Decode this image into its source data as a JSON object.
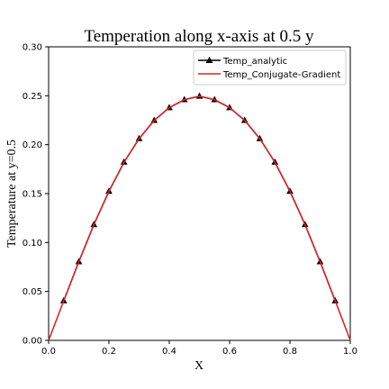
{
  "chart_data": {
    "type": "line",
    "title": "Temperation along x-axis at 0.5 y",
    "xlabel": "X",
    "ylabel": "Temperature at y=0.5",
    "xlim": [
      0.0,
      1.0
    ],
    "ylim": [
      0.0,
      0.3
    ],
    "x_ticks": [
      "0.0",
      "0.2",
      "0.4",
      "0.6",
      "0.8",
      "1.0"
    ],
    "y_ticks": [
      "0.00",
      "0.05",
      "0.10",
      "0.15",
      "0.20",
      "0.25",
      "0.30"
    ],
    "grid": false,
    "legend_position": "top-right",
    "series": [
      {
        "name": "Temp_analytic",
        "color": "#000000",
        "marker": "triangle",
        "x": [
          0.05,
          0.1,
          0.15,
          0.2,
          0.25,
          0.3,
          0.35,
          0.4,
          0.45,
          0.5,
          0.55,
          0.6,
          0.65,
          0.7,
          0.75,
          0.8,
          0.85,
          0.9,
          0.95
        ],
        "y": [
          0.0404,
          0.0803,
          0.1183,
          0.1524,
          0.1821,
          0.2062,
          0.2248,
          0.2378,
          0.246,
          0.2495,
          0.246,
          0.2378,
          0.2248,
          0.2062,
          0.1821,
          0.1524,
          0.1183,
          0.0803,
          0.0404
        ]
      },
      {
        "name": "Temp_Conjugate-Gradient",
        "color": "#d62728",
        "marker": "none",
        "x": [
          0.0,
          0.05,
          0.1,
          0.15,
          0.2,
          0.25,
          0.3,
          0.35,
          0.4,
          0.45,
          0.5,
          0.55,
          0.6,
          0.65,
          0.7,
          0.75,
          0.8,
          0.85,
          0.9,
          0.95,
          1.0
        ],
        "y": [
          0.0,
          0.0404,
          0.0803,
          0.1183,
          0.1524,
          0.1821,
          0.2062,
          0.2248,
          0.2378,
          0.246,
          0.2495,
          0.246,
          0.2378,
          0.2248,
          0.2062,
          0.1821,
          0.1524,
          0.1183,
          0.0803,
          0.0404,
          0.0
        ]
      }
    ]
  }
}
